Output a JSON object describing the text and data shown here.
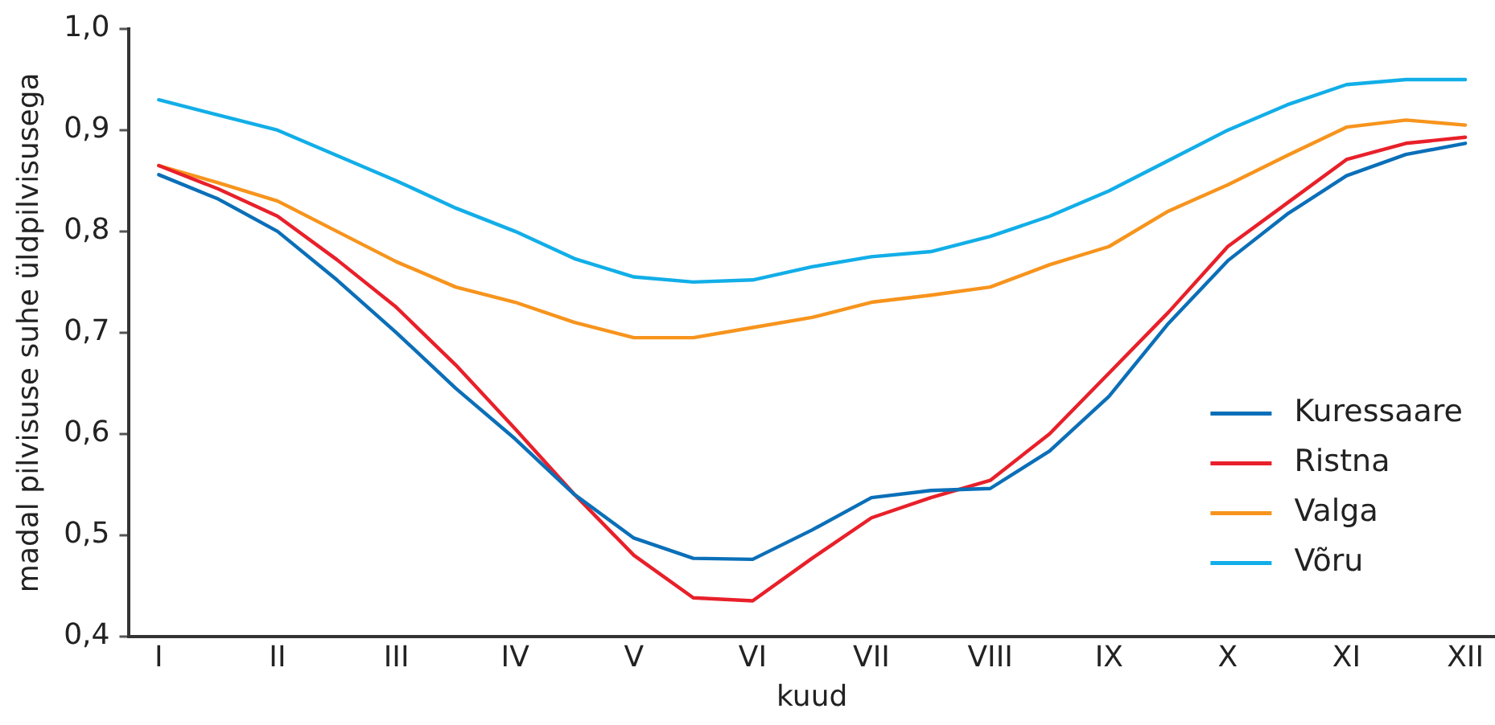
{
  "chart_data": {
    "type": "line",
    "xlabel": "kuud",
    "ylabel": "madal pilvisuse suhe üldpilvisusega",
    "categories": [
      "I",
      null,
      "II",
      null,
      "III",
      null,
      "IV",
      null,
      "V",
      null,
      "VI",
      null,
      "VII",
      null,
      "VIII",
      null,
      "IX",
      null,
      "X",
      null,
      "XI",
      null,
      "XII"
    ],
    "ylim": [
      0.4,
      1.0
    ],
    "yticks": [
      {
        "value": 0.4,
        "label": "0,4"
      },
      {
        "value": 0.5,
        "label": "0,5"
      },
      {
        "value": 0.6,
        "label": "0,6"
      },
      {
        "value": 0.7,
        "label": "0,7"
      },
      {
        "value": 0.8,
        "label": "0,8"
      },
      {
        "value": 0.9,
        "label": "0,9"
      },
      {
        "value": 1.0,
        "label": "1,0"
      }
    ],
    "grid": false,
    "legend": "bottom right",
    "marker": "none",
    "line_style": "solid",
    "series": [
      {
        "name": "Kuressaare",
        "color": "#0b6fb8",
        "values": [
          0.856,
          0.832,
          0.8,
          0.752,
          0.7,
          0.645,
          0.595,
          0.54,
          0.497,
          0.477,
          0.476,
          0.505,
          0.537,
          0.544,
          0.546,
          0.583,
          0.637,
          0.709,
          0.771,
          0.817,
          0.855,
          0.876,
          0.887
        ]
      },
      {
        "name": "Ristna",
        "color": "#e8202a",
        "values": [
          0.865,
          0.842,
          0.815,
          0.772,
          0.725,
          0.668,
          0.605,
          0.54,
          0.48,
          0.438,
          0.435,
          0.477,
          0.517,
          0.537,
          0.554,
          0.6,
          0.66,
          0.72,
          0.785,
          0.828,
          0.871,
          0.887,
          0.893
        ]
      },
      {
        "name": "Valga",
        "color": "#f7941d",
        "values": [
          0.865,
          0.848,
          0.83,
          0.8,
          0.77,
          0.745,
          0.73,
          0.71,
          0.695,
          0.695,
          0.705,
          0.715,
          0.73,
          0.737,
          0.745,
          0.767,
          0.785,
          0.82,
          0.846,
          0.875,
          0.903,
          0.91,
          0.905
        ]
      },
      {
        "name": "Võru",
        "color": "#12aee8",
        "values": [
          0.93,
          0.915,
          0.9,
          0.875,
          0.85,
          0.823,
          0.8,
          0.773,
          0.755,
          0.75,
          0.752,
          0.765,
          0.775,
          0.78,
          0.795,
          0.815,
          0.84,
          0.87,
          0.9,
          0.925,
          0.945,
          0.95,
          0.95
        ]
      }
    ]
  }
}
